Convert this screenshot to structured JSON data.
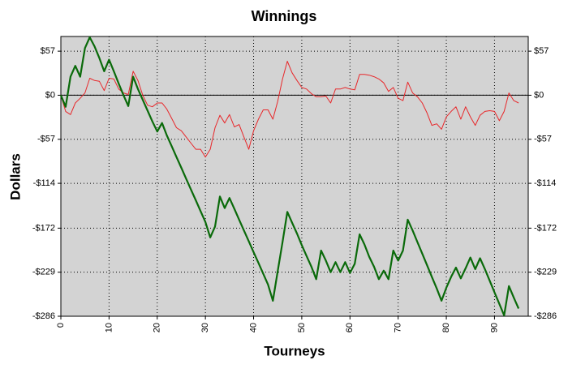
{
  "chart_data": {
    "type": "line",
    "title": "Winnings",
    "x_label": "Tourneys",
    "y_label": "Dollars",
    "x": [
      0,
      1,
      2,
      3,
      4,
      5,
      6,
      7,
      8,
      9,
      10,
      11,
      12,
      13,
      14,
      15,
      16,
      17,
      18,
      19,
      20,
      21,
      22,
      23,
      24,
      25,
      26,
      27,
      28,
      29,
      30,
      31,
      32,
      33,
      34,
      35,
      36,
      37,
      38,
      39,
      40,
      41,
      42,
      43,
      44,
      45,
      46,
      47,
      48,
      49,
      50,
      51,
      52,
      53,
      54,
      55,
      56,
      57,
      58,
      59,
      60,
      61,
      62,
      63,
      64,
      65,
      66,
      67,
      68,
      69,
      70,
      71,
      72,
      73,
      74,
      75,
      76,
      77,
      78,
      79,
      80,
      81,
      82,
      83,
      84,
      85,
      86,
      87,
      88,
      89,
      90,
      91,
      92,
      93,
      94,
      95
    ],
    "series": [
      {
        "color": "#e8272a",
        "width": 1,
        "values": [
          0,
          -21,
          -25,
          -10,
          -4,
          3,
          22,
          19,
          18,
          6,
          22,
          21,
          8,
          3,
          1,
          31,
          19,
          0,
          -13,
          -15,
          -10,
          -10,
          -18,
          -30,
          -42,
          -46,
          -54,
          -62,
          -70,
          -70,
          -80,
          -70,
          -42,
          -26,
          -36,
          -25,
          -41,
          -38,
          -54,
          -70,
          -46,
          -31,
          -19,
          -19,
          -31,
          -8,
          21,
          44,
          29,
          19,
          10,
          8,
          2,
          -2,
          -2,
          -1,
          -10,
          8,
          8,
          10,
          8,
          7,
          27,
          27,
          26,
          24,
          21,
          16,
          5,
          10,
          -4,
          -7,
          17,
          3,
          -2,
          -10,
          -23,
          -39,
          -37,
          -44,
          -28,
          -21,
          -15,
          -31,
          -15,
          -28,
          -39,
          -26,
          -21,
          -20,
          -21,
          -33,
          -21,
          3,
          -7,
          -10
        ]
      },
      {
        "color": "#0a6a0a",
        "width": 2.2,
        "values": [
          0,
          -15,
          24,
          38,
          24,
          61,
          75,
          63,
          48,
          31,
          46,
          31,
          15,
          0,
          -14,
          24,
          8,
          -6,
          -20,
          -34,
          -47,
          -36,
          -52,
          -66,
          -80,
          -94,
          -108,
          -122,
          -136,
          -150,
          -164,
          -184,
          -170,
          -131,
          -146,
          -133,
          -147,
          -161,
          -175,
          -189,
          -203,
          -217,
          -231,
          -245,
          -266,
          -228,
          -190,
          -151,
          -165,
          -179,
          -194,
          -208,
          -222,
          -238,
          -201,
          -214,
          -229,
          -216,
          -229,
          -216,
          -230,
          -218,
          -180,
          -193,
          -209,
          -222,
          -238,
          -227,
          -238,
          -201,
          -214,
          -201,
          -161,
          -175,
          -190,
          -205,
          -220,
          -235,
          -250,
          -266,
          -249,
          -235,
          -223,
          -237,
          -224,
          -210,
          -225,
          -211,
          -225,
          -240,
          -255,
          -270,
          -285,
          -247,
          -262,
          -276
        ]
      }
    ],
    "xlim": [
      0,
      97
    ],
    "xticks": [
      0,
      10,
      20,
      30,
      40,
      50,
      60,
      70,
      80,
      90
    ],
    "ylim": [
      -286,
      76
    ],
    "yticks": [
      {
        "value": 57,
        "label": "$57"
      },
      {
        "value": 0,
        "label": "$0"
      },
      {
        "value": -57,
        "label": "-$57"
      },
      {
        "value": -114,
        "label": "-$114"
      },
      {
        "value": -172,
        "label": "-$172"
      },
      {
        "value": -229,
        "label": "-$229"
      },
      {
        "value": -286,
        "label": "-$286"
      }
    ],
    "grid": true,
    "reference_line": 0,
    "plot_background": "#d3d3d3"
  }
}
